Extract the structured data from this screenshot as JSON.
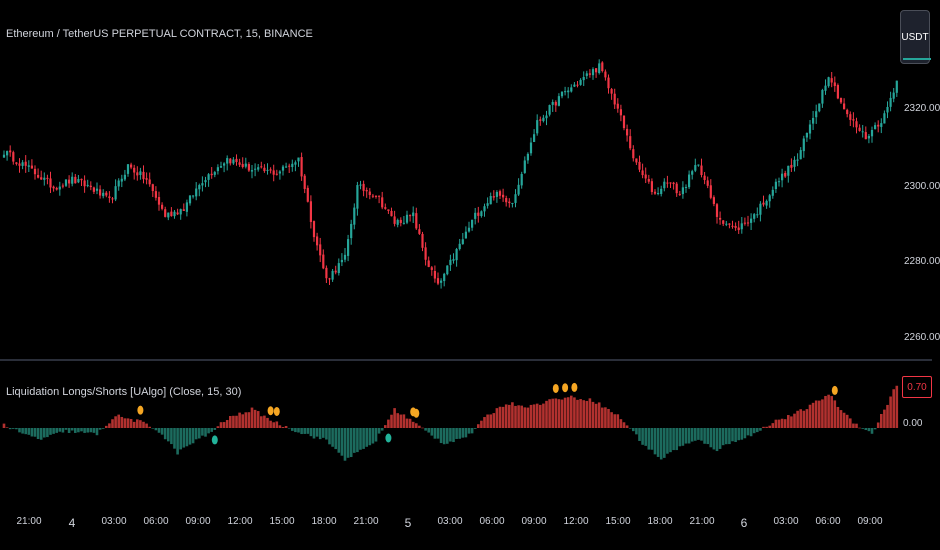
{
  "header": {
    "symbol_title": "Ethereum / TetherUS PERPETUAL CONTRACT, 15, BINANCE",
    "currency_button": "USDT"
  },
  "indicator": {
    "title": "Liquidation Longs/Shorts [UAlgo] (Close, 15, 30)",
    "value_badge": "0.70",
    "zero_label": "0.00"
  },
  "colors": {
    "background": "#000000",
    "up": "#26a69a",
    "down": "#f23645",
    "hist_pos": "#b2312f",
    "hist_neg": "#1c6b5e",
    "marker_pos": "#f5a623",
    "marker_neg": "#22b39a",
    "separator": "#2a2e39"
  },
  "price_axis": {
    "ticks": [
      "2320.00",
      "2300.00",
      "2280.00",
      "2260.00"
    ]
  },
  "time_axis": {
    "ticks": [
      "21:00",
      "4",
      "03:00",
      "06:00",
      "09:00",
      "12:00",
      "15:00",
      "18:00",
      "21:00",
      "5",
      "03:00",
      "06:00",
      "09:00",
      "12:00",
      "15:00",
      "18:00",
      "21:00",
      "6",
      "03:00",
      "06:00",
      "09:00"
    ]
  },
  "chart_data": {
    "type": "candlestick",
    "title": "Ethereum / TetherUS PERPETUAL CONTRACT, 15, BINANCE",
    "ylabel": "USDT",
    "ylim": [
      2255,
      2345
    ],
    "close_waypoints": [
      [
        0,
        2308
      ],
      [
        10,
        2302
      ],
      [
        16,
        2298
      ],
      [
        22,
        2300
      ],
      [
        28,
        2298
      ],
      [
        34,
        2294
      ],
      [
        40,
        2304
      ],
      [
        46,
        2300
      ],
      [
        52,
        2290
      ],
      [
        58,
        2292
      ],
      [
        64,
        2300
      ],
      [
        72,
        2306
      ],
      [
        80,
        2303
      ],
      [
        88,
        2302
      ],
      [
        95,
        2306
      ],
      [
        100,
        2285
      ],
      [
        104,
        2272
      ],
      [
        110,
        2278
      ],
      [
        114,
        2298
      ],
      [
        120,
        2296
      ],
      [
        126,
        2288
      ],
      [
        132,
        2290
      ],
      [
        136,
        2278
      ],
      [
        140,
        2270
      ],
      [
        146,
        2280
      ],
      [
        152,
        2290
      ],
      [
        158,
        2296
      ],
      [
        164,
        2294
      ],
      [
        172,
        2316
      ],
      [
        180,
        2324
      ],
      [
        186,
        2328
      ],
      [
        192,
        2332
      ],
      [
        198,
        2320
      ],
      [
        204,
        2304
      ],
      [
        210,
        2296
      ],
      [
        214,
        2300
      ],
      [
        218,
        2296
      ],
      [
        224,
        2305
      ],
      [
        230,
        2290
      ],
      [
        236,
        2286
      ],
      [
        242,
        2290
      ],
      [
        250,
        2300
      ],
      [
        256,
        2306
      ],
      [
        262,
        2320
      ],
      [
        266,
        2330
      ],
      [
        272,
        2318
      ],
      [
        278,
        2312
      ],
      [
        284,
        2318
      ],
      [
        288,
        2328
      ]
    ],
    "indicator": {
      "name": "Liquidation Longs/Shorts [UAlgo] (Close, 15, 30)",
      "last_value": 0.7,
      "waypoints": [
        [
          0,
          0.05
        ],
        [
          6,
          -0.1
        ],
        [
          12,
          -0.18
        ],
        [
          20,
          -0.05
        ],
        [
          30,
          -0.1
        ],
        [
          36,
          0.2
        ],
        [
          44,
          0.1
        ],
        [
          50,
          -0.05
        ],
        [
          56,
          -0.4
        ],
        [
          62,
          -0.2
        ],
        [
          66,
          -0.1
        ],
        [
          72,
          0.15
        ],
        [
          80,
          0.3
        ],
        [
          88,
          0.08
        ],
        [
          96,
          -0.08
        ],
        [
          104,
          -0.2
        ],
        [
          110,
          -0.5
        ],
        [
          116,
          -0.35
        ],
        [
          120,
          -0.2
        ],
        [
          126,
          0.3
        ],
        [
          132,
          0.1
        ],
        [
          136,
          -0.05
        ],
        [
          142,
          -0.25
        ],
        [
          150,
          -0.12
        ],
        [
          156,
          0.2
        ],
        [
          162,
          0.4
        ],
        [
          170,
          0.35
        ],
        [
          176,
          0.45
        ],
        [
          182,
          0.5
        ],
        [
          190,
          0.45
        ],
        [
          198,
          0.2
        ],
        [
          202,
          0.0
        ],
        [
          206,
          -0.25
        ],
        [
          212,
          -0.5
        ],
        [
          218,
          -0.3
        ],
        [
          224,
          -0.2
        ],
        [
          230,
          -0.35
        ],
        [
          236,
          -0.2
        ],
        [
          242,
          -0.1
        ],
        [
          248,
          0.1
        ],
        [
          254,
          0.2
        ],
        [
          260,
          0.35
        ],
        [
          266,
          0.55
        ],
        [
          270,
          0.3
        ],
        [
          274,
          0.1
        ],
        [
          280,
          -0.1
        ],
        [
          286,
          0.5
        ],
        [
          288,
          0.7
        ]
      ],
      "long_markers": [
        44,
        86,
        88,
        132,
        133,
        178,
        181,
        184,
        268
      ],
      "short_markers": [
        68,
        124
      ]
    }
  }
}
